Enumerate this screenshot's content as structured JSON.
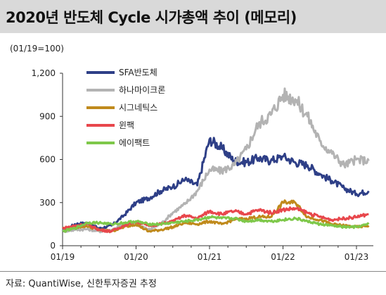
{
  "title": "2020년 반도체 Cycle 시가총액 추이 (메모리)",
  "unit": "(01/19=100)",
  "source": "자료: QuantiWise, 신한투자증권 추정",
  "chart_data": {
    "type": "line",
    "title": "2020년 반도체 Cycle 시가총액 추이 (메모리)",
    "ylabel": "(01/19=100)",
    "xlabel": "",
    "ylim": [
      0,
      1200
    ],
    "yticks": [
      0,
      300,
      600,
      900,
      1200
    ],
    "ytick_labels": [
      "0",
      "300",
      "600",
      "900",
      "1,200"
    ],
    "xticks": [
      "01/19",
      "01/20",
      "01/21",
      "01/22",
      "01/23"
    ],
    "x": [
      "01/19",
      "03/19",
      "05/19",
      "07/19",
      "09/19",
      "11/19",
      "01/20",
      "03/20",
      "05/20",
      "07/20",
      "09/20",
      "11/20",
      "01/21",
      "03/21",
      "05/21",
      "07/21",
      "09/21",
      "11/21",
      "01/22",
      "03/22",
      "05/22",
      "07/22",
      "09/22",
      "11/22",
      "01/23",
      "03/23"
    ],
    "grid": false,
    "legend_position": "top-left",
    "series": [
      {
        "name": "SFA반도체",
        "color": "#2e3f87",
        "values": [
          100,
          150,
          160,
          120,
          140,
          210,
          300,
          330,
          380,
          410,
          460,
          420,
          740,
          680,
          590,
          580,
          610,
          590,
          620,
          580,
          560,
          500,
          450,
          400,
          360,
          380
        ]
      },
      {
        "name": "하나마이크론",
        "color": "#b3b3b3",
        "values": [
          100,
          110,
          115,
          100,
          110,
          150,
          160,
          110,
          150,
          230,
          290,
          380,
          530,
          520,
          560,
          670,
          850,
          910,
          1050,
          1020,
          900,
          730,
          640,
          560,
          600,
          590
        ]
      },
      {
        "name": "시그네틱스",
        "color": "#c08a1c",
        "values": [
          120,
          130,
          135,
          110,
          100,
          130,
          150,
          100,
          110,
          130,
          160,
          150,
          170,
          150,
          180,
          190,
          200,
          200,
          300,
          300,
          200,
          180,
          150,
          140,
          130,
          140
        ]
      },
      {
        "name": "윈팩",
        "color": "#e8474c",
        "values": [
          120,
          140,
          150,
          110,
          100,
          140,
          170,
          140,
          150,
          170,
          210,
          190,
          240,
          220,
          240,
          220,
          250,
          230,
          250,
          260,
          230,
          200,
          180,
          190,
          200,
          220
        ]
      },
      {
        "name": "에이팩트",
        "color": "#7ec84a",
        "values": [
          100,
          120,
          160,
          160,
          150,
          160,
          170,
          150,
          150,
          160,
          170,
          180,
          200,
          190,
          190,
          170,
          180,
          170,
          180,
          190,
          170,
          150,
          140,
          130,
          130,
          150
        ]
      }
    ]
  }
}
